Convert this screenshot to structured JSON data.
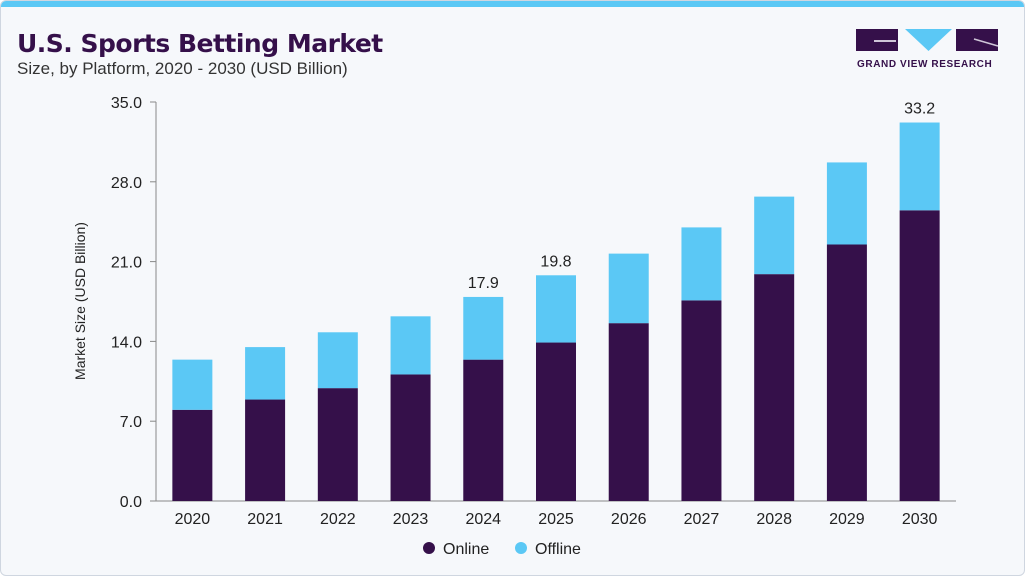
{
  "header": {
    "title": "U.S. Sports Betting Market",
    "subtitle": "Size, by Platform, 2020 - 2030 (USD Billion)",
    "logo_text": "GRAND VIEW RESEARCH"
  },
  "colors": {
    "online": "#35104a",
    "offline": "#5bc8f5",
    "accent": "#5bc8f5"
  },
  "chart_data": {
    "type": "bar",
    "stacked": true,
    "title": "U.S. Sports Betting Market",
    "subtitle": "Size, by Platform, 2020 - 2030 (USD Billion)",
    "xlabel": "",
    "ylabel": "Market Size (USD Billion)",
    "ylim": [
      0,
      35
    ],
    "yticks": [
      "0.0",
      "7.0",
      "14.0",
      "21.0",
      "28.0",
      "35.0"
    ],
    "categories": [
      "2020",
      "2021",
      "2022",
      "2023",
      "2024",
      "2025",
      "2026",
      "2027",
      "2028",
      "2029",
      "2030"
    ],
    "series": [
      {
        "name": "Online",
        "values": [
          8.0,
          8.9,
          9.9,
          11.1,
          12.4,
          13.9,
          15.6,
          17.6,
          19.9,
          22.5,
          25.5
        ]
      },
      {
        "name": "Offline",
        "values": [
          4.4,
          4.6,
          4.9,
          5.1,
          5.5,
          5.9,
          6.1,
          6.4,
          6.8,
          7.2,
          7.7
        ]
      }
    ],
    "data_labels": {
      "2024": "17.9",
      "2025": "19.8",
      "2030": "33.2"
    },
    "legend": "bottom",
    "grid": false
  }
}
